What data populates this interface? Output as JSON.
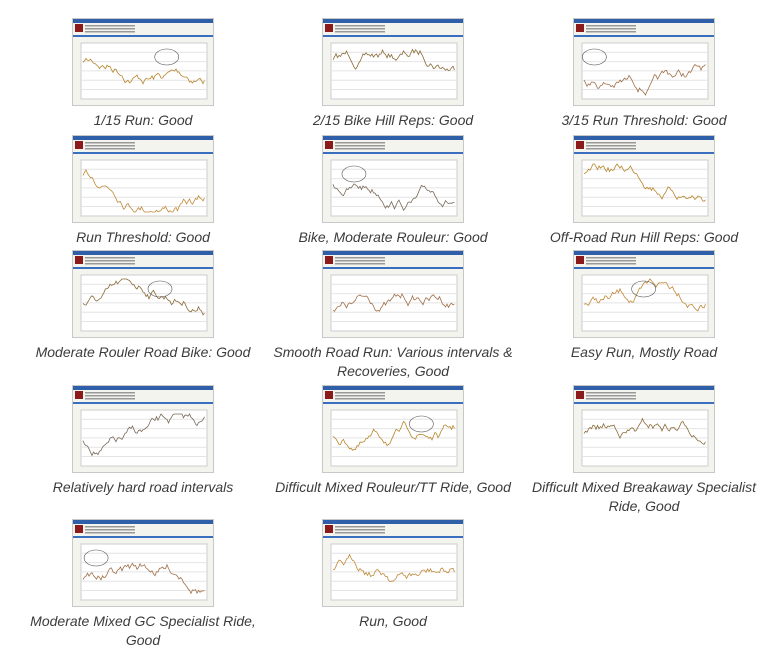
{
  "gallery": {
    "items": [
      {
        "caption": "1/15 Run: Good"
      },
      {
        "caption": "2/15 Bike Hill Reps: Good"
      },
      {
        "caption": "3/15 Run Threshold: Good"
      },
      {
        "caption": "Run Threshold: Good"
      },
      {
        "caption": "Bike, Moderate Rouleur: Good"
      },
      {
        "caption": "Off-Road Run Hill Reps: Good"
      },
      {
        "caption": "Moderate Rouler Road Bike: Good"
      },
      {
        "caption": "Smooth Road Run: Various intervals & Recoveries, Good"
      },
      {
        "caption": "Easy Run, Mostly Road"
      },
      {
        "caption": "Relatively hard road intervals"
      },
      {
        "caption": "Difficult Mixed Rouleur/TT Ride, Good"
      },
      {
        "caption": "Difficult Mixed Breakaway Specialist Ride, Good"
      },
      {
        "caption": "Moderate Mixed GC Specialist Ride, Good"
      },
      {
        "caption": "Run, Good"
      }
    ]
  }
}
